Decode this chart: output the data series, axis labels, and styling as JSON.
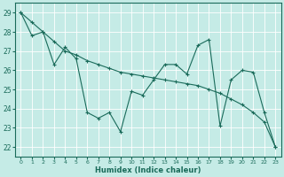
{
  "xlabel": "Humidex (Indice chaleur)",
  "bg_color": "#c5ebe6",
  "grid_color": "#ffffff",
  "line_color": "#1a6b5a",
  "xlim": [
    -0.5,
    23.5
  ],
  "ylim": [
    21.5,
    29.5
  ],
  "yticks": [
    22,
    23,
    24,
    25,
    26,
    27,
    28,
    29
  ],
  "xticks": [
    0,
    1,
    2,
    3,
    4,
    5,
    6,
    7,
    8,
    9,
    10,
    11,
    12,
    13,
    14,
    15,
    16,
    17,
    18,
    19,
    20,
    21,
    22,
    23
  ],
  "series1_x": [
    0,
    1,
    2,
    3,
    4,
    5,
    6,
    7,
    8,
    9,
    10,
    11,
    12,
    13,
    14,
    15,
    16,
    17,
    18,
    19,
    20,
    21,
    22,
    23
  ],
  "series1_y": [
    29.0,
    27.8,
    28.0,
    26.3,
    27.2,
    26.6,
    23.8,
    23.5,
    23.8,
    22.8,
    24.9,
    24.7,
    25.5,
    26.3,
    26.3,
    25.8,
    27.3,
    27.6,
    23.1,
    25.5,
    26.0,
    25.9,
    23.8,
    22.0
  ],
  "series2_x": [
    0,
    1,
    2,
    3,
    4,
    5,
    6,
    7,
    8,
    9,
    10,
    11,
    12,
    13,
    14,
    15,
    16,
    17,
    18,
    19,
    20,
    21,
    22,
    23
  ],
  "series2_y": [
    29.0,
    28.5,
    28.0,
    27.5,
    27.0,
    26.8,
    26.5,
    26.3,
    26.1,
    25.9,
    25.8,
    25.7,
    25.6,
    25.5,
    25.4,
    25.3,
    25.2,
    25.0,
    24.8,
    24.5,
    24.2,
    23.8,
    23.3,
    22.0
  ]
}
